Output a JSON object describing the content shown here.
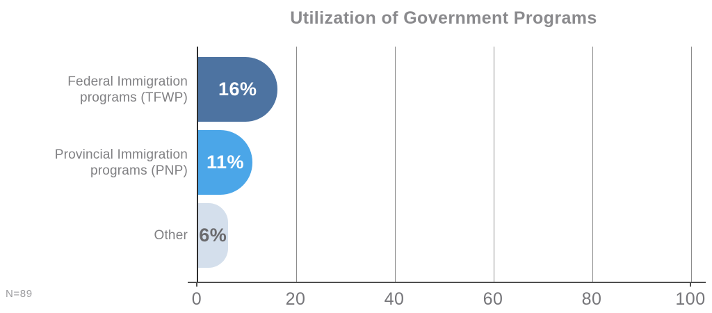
{
  "title": "Utilization of Government Programs",
  "footnote": "N=89",
  "chart_data": {
    "type": "bar",
    "orientation": "horizontal",
    "title": "Utilization of Government Programs",
    "categories": [
      "Federal Immigration programs (TFWP)",
      "Provincial Immigration programs (PNP)",
      "Other"
    ],
    "category_label_lines": [
      [
        "Federal Immigration",
        "programs (TFWP)"
      ],
      [
        "Provincial Immigration",
        "programs (PNP)"
      ],
      [
        "Other"
      ]
    ],
    "values": [
      16,
      11,
      6
    ],
    "value_labels": [
      "16%",
      "11%",
      "6%"
    ],
    "bar_colors": [
      "#4d73a1",
      "#4ba6e8",
      "#d4dfec"
    ],
    "value_label_colors": [
      "#ffffff",
      "#ffffff",
      "#6b6b6e"
    ],
    "xlabel": "",
    "ylabel": "",
    "xlim": [
      0,
      100
    ],
    "xticks": [
      0,
      20,
      40,
      60,
      80,
      100
    ],
    "grid": true,
    "legend": false,
    "sample_note": "N=89"
  },
  "colors": {
    "title_text": "#8a8a8d",
    "category_label_text": "#808083",
    "tick_label_text": "#76767a",
    "footnote_text": "#9b9b9e",
    "gridline": "#8c8c8c",
    "y_axis_line": "#2f2f2f",
    "x_axis_line": "#4f4f4f",
    "background": "#ffffff"
  }
}
